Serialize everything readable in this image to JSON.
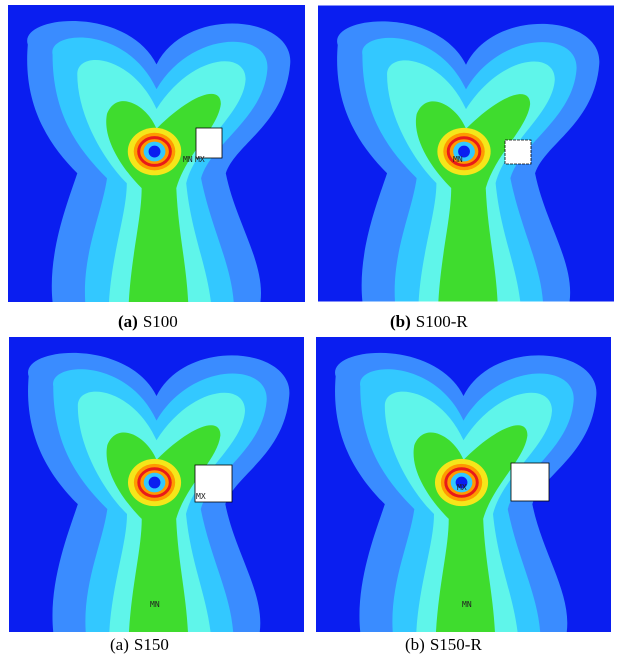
{
  "panels": [
    {
      "label": "(a)",
      "name": "S100",
      "annotations": [
        "MN",
        "MX"
      ]
    },
    {
      "label": "(b)",
      "name": "S100-R",
      "annotations": [
        "MN"
      ]
    },
    {
      "label": "(a)",
      "name": "S150",
      "annotations": [
        "MX",
        "MN"
      ]
    },
    {
      "label": "(b)",
      "name": "S150-R",
      "annotations": [
        "MX",
        "MN"
      ]
    }
  ]
}
